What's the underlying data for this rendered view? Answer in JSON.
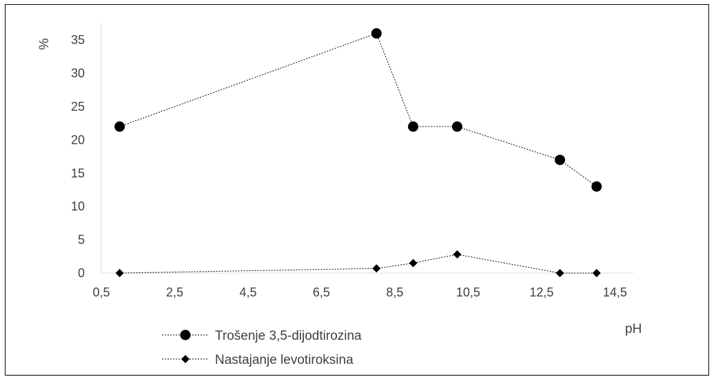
{
  "chart_data": {
    "type": "line",
    "xlabel": "pH",
    "ylabel": "%",
    "xlim": [
      0.5,
      15.0
    ],
    "ylim": [
      0,
      37.5
    ],
    "x_ticks": [
      0.5,
      2.5,
      4.5,
      6.5,
      8.5,
      10.5,
      12.5,
      14.5
    ],
    "x_tick_labels": [
      "0,5",
      "2,5",
      "4,5",
      "6,5",
      "8,5",
      "10,5",
      "12,5",
      "14,5"
    ],
    "y_ticks": [
      0,
      5,
      10,
      15,
      20,
      25,
      30,
      35
    ],
    "y_tick_labels": [
      "0",
      "5",
      "10",
      "15",
      "20",
      "25",
      "30",
      "35"
    ],
    "grid": false,
    "legend_position": "bottom-left",
    "series": [
      {
        "name": "Trošenje 3,5-dijodtirozina",
        "marker": "circle",
        "line_style": "dotted",
        "color": "#000000",
        "points": [
          [
            1,
            22
          ],
          [
            8,
            36
          ],
          [
            9,
            22
          ],
          [
            10.2,
            22
          ],
          [
            13,
            17
          ],
          [
            14,
            13
          ]
        ]
      },
      {
        "name": "Nastajanje levotiroksina",
        "marker": "diamond",
        "line_style": "dotted",
        "color": "#000000",
        "points": [
          [
            1,
            0
          ],
          [
            8,
            0.7
          ],
          [
            9,
            1.5
          ],
          [
            10.2,
            2.8
          ],
          [
            13,
            0
          ],
          [
            14,
            0
          ]
        ]
      }
    ]
  }
}
